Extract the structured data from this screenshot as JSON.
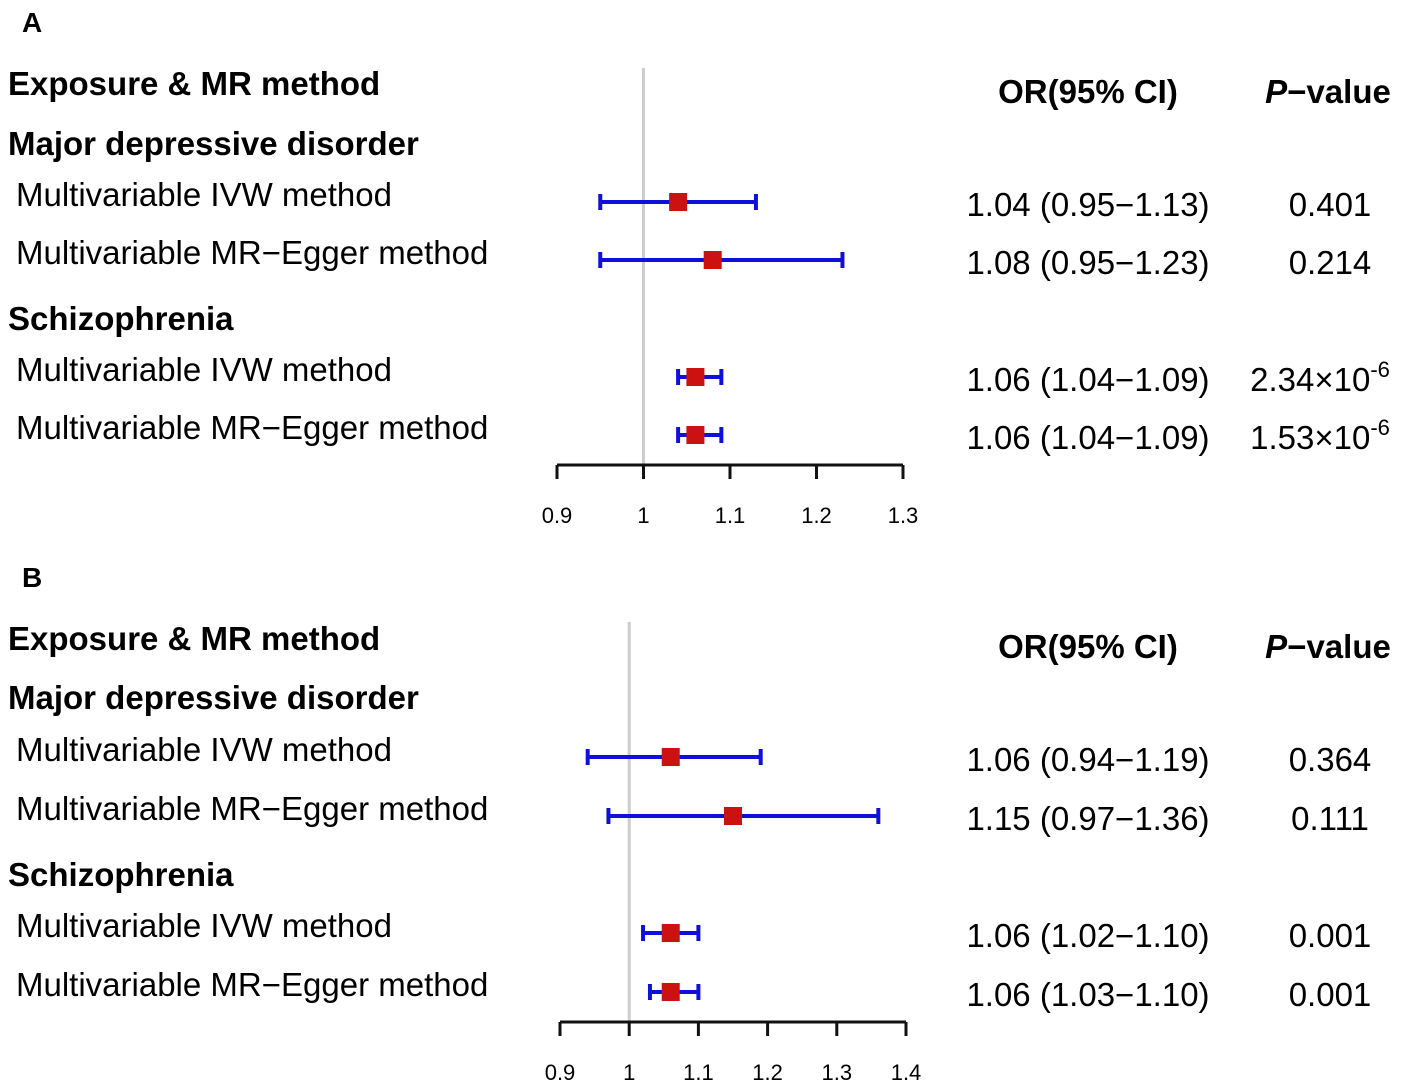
{
  "chart_data": [
    {
      "type": "forest",
      "panel": "A",
      "headers": {
        "label": "Exposure & MR method",
        "or": "OR(95% CI)",
        "p_italic": "P",
        "p_rest": "−value"
      },
      "reference_line": 1,
      "xlim": [
        0.9,
        1.3
      ],
      "xticks": [
        "0.9",
        "1",
        "1.1",
        "1.2",
        "1.3"
      ],
      "groups": [
        {
          "name": "Major depressive disorder",
          "rows": [
            {
              "label": "Multivariable IVW method",
              "or": 1.04,
              "lo": 0.95,
              "hi": 1.13,
              "or_text": "1.04 (0.95−1.13)",
              "p_text": "0.401"
            },
            {
              "label": "Multivariable MR−Egger method",
              "or": 1.08,
              "lo": 0.95,
              "hi": 1.23,
              "or_text": "1.08 (0.95−1.23)",
              "p_text": "0.214"
            }
          ]
        },
        {
          "name": "Schizophrenia",
          "rows": [
            {
              "label": "Multivariable IVW method",
              "or": 1.06,
              "lo": 1.04,
              "hi": 1.09,
              "or_text": "1.06 (1.04−1.09)",
              "p_text": "2.34×10",
              "p_exp": "-6"
            },
            {
              "label": "Multivariable MR−Egger method",
              "or": 1.06,
              "lo": 1.04,
              "hi": 1.09,
              "or_text": "1.06 (1.04−1.09)",
              "p_text": "1.53×10",
              "p_exp": "-6"
            }
          ]
        }
      ]
    },
    {
      "type": "forest",
      "panel": "B",
      "headers": {
        "label": "Exposure & MR method",
        "or": "OR(95% CI)",
        "p_italic": "P",
        "p_rest": "−value"
      },
      "reference_line": 1,
      "xlim": [
        0.9,
        1.4
      ],
      "xticks": [
        "0.9",
        "1",
        "1.1",
        "1.2",
        "1.3",
        "1.4"
      ],
      "groups": [
        {
          "name": "Major depressive disorder",
          "rows": [
            {
              "label": "Multivariable IVW method",
              "or": 1.06,
              "lo": 0.94,
              "hi": 1.19,
              "or_text": "1.06 (0.94−1.19)",
              "p_text": "0.364"
            },
            {
              "label": "Multivariable MR−Egger method",
              "or": 1.15,
              "lo": 0.97,
              "hi": 1.36,
              "or_text": "1.15 (0.97−1.36)",
              "p_text": "0.111"
            }
          ]
        },
        {
          "name": "Schizophrenia",
          "rows": [
            {
              "label": "Multivariable IVW method",
              "or": 1.06,
              "lo": 1.02,
              "hi": 1.1,
              "or_text": "1.06 (1.02−1.10)",
              "p_text": "0.001"
            },
            {
              "label": "Multivariable MR−Egger method",
              "or": 1.06,
              "lo": 1.03,
              "hi": 1.1,
              "or_text": "1.06 (1.03−1.10)",
              "p_text": "0.001"
            }
          ]
        }
      ]
    }
  ],
  "colors": {
    "ci_line": "#1010dd",
    "point": "#cc1111",
    "ref_line": "#cccccc",
    "axis": "#111111"
  }
}
